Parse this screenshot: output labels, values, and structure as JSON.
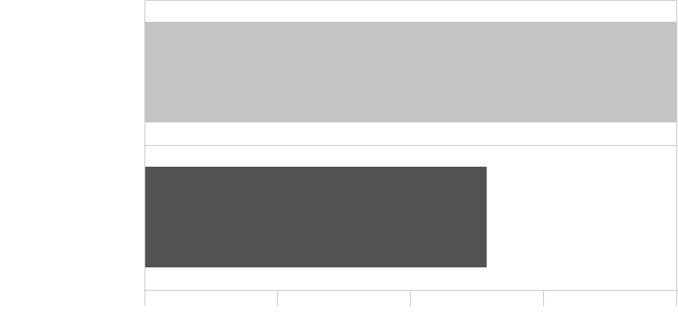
{
  "chart_data": {
    "type": "bar",
    "orientation": "horizontal",
    "title": "",
    "xlabel": "",
    "ylabel": "",
    "categories": [
      "",
      ""
    ],
    "values": [
      4.0,
      2.57
    ],
    "xlim": [
      0,
      4
    ],
    "x_ticks": [
      0,
      1,
      2,
      3,
      4
    ],
    "grid": true,
    "legend": "none",
    "colors": [
      "#c4c4c4",
      "#525252"
    ],
    "gridline_color": "#c8c8c8"
  }
}
